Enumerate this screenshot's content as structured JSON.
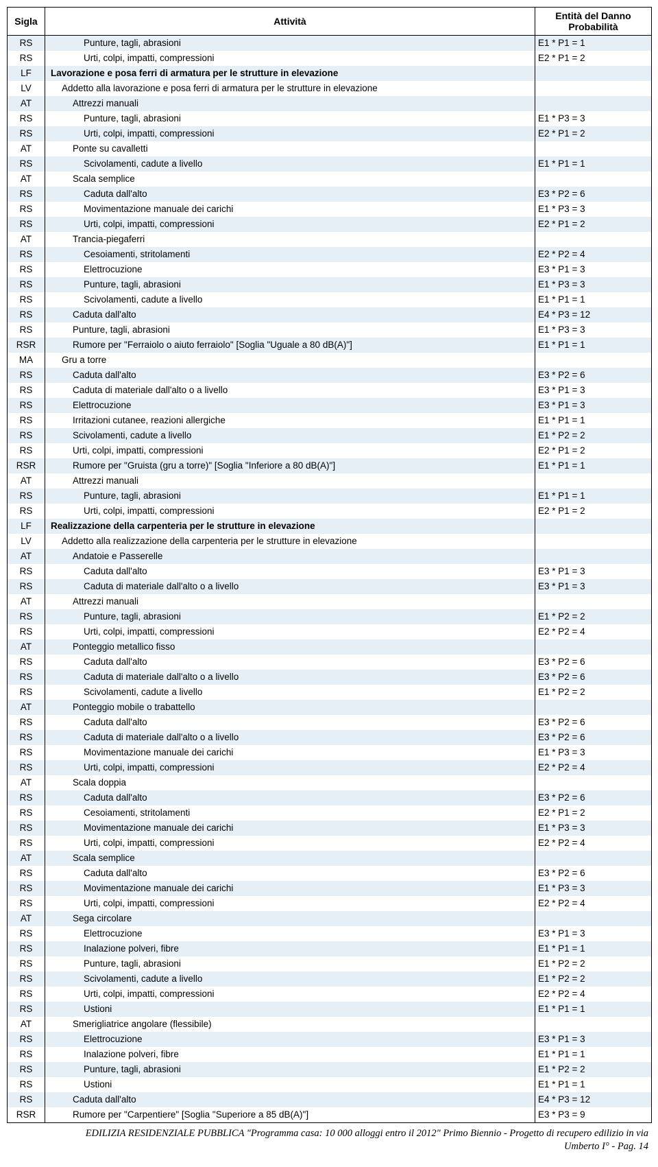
{
  "headers": {
    "sigla": "Sigla",
    "attivita": "Attività",
    "entita": "Entità del Danno Probabilità"
  },
  "rows": [
    {
      "sigla": "RS",
      "text": "Punture, tagli, abrasioni",
      "indent": 3,
      "bold": false,
      "ent": "E1 * P1 = 1"
    },
    {
      "sigla": "RS",
      "text": "Urti, colpi, impatti, compressioni",
      "indent": 3,
      "bold": false,
      "ent": "E2 * P1 = 2"
    },
    {
      "sigla": "LF",
      "text": "Lavorazione e posa ferri di armatura per le strutture in elevazione",
      "indent": 0,
      "bold": true,
      "ent": ""
    },
    {
      "sigla": "LV",
      "text": "Addetto alla lavorazione e posa ferri di armatura per le strutture in elevazione",
      "indent": 1,
      "bold": false,
      "ent": ""
    },
    {
      "sigla": "AT",
      "text": "Attrezzi manuali",
      "indent": 2,
      "bold": false,
      "ent": ""
    },
    {
      "sigla": "RS",
      "text": "Punture, tagli, abrasioni",
      "indent": 3,
      "bold": false,
      "ent": "E1 * P3 = 3"
    },
    {
      "sigla": "RS",
      "text": "Urti, colpi, impatti, compressioni",
      "indent": 3,
      "bold": false,
      "ent": "E2 * P1 = 2"
    },
    {
      "sigla": "AT",
      "text": "Ponte su cavalletti",
      "indent": 2,
      "bold": false,
      "ent": ""
    },
    {
      "sigla": "RS",
      "text": "Scivolamenti, cadute a livello",
      "indent": 3,
      "bold": false,
      "ent": "E1 * P1 = 1"
    },
    {
      "sigla": "AT",
      "text": "Scala semplice",
      "indent": 2,
      "bold": false,
      "ent": ""
    },
    {
      "sigla": "RS",
      "text": "Caduta dall'alto",
      "indent": 3,
      "bold": false,
      "ent": "E3 * P2 = 6"
    },
    {
      "sigla": "RS",
      "text": "Movimentazione manuale dei carichi",
      "indent": 3,
      "bold": false,
      "ent": "E1 * P3 = 3"
    },
    {
      "sigla": "RS",
      "text": "Urti, colpi, impatti, compressioni",
      "indent": 3,
      "bold": false,
      "ent": "E2 * P1 = 2"
    },
    {
      "sigla": "AT",
      "text": "Trancia-piegaferri",
      "indent": 2,
      "bold": false,
      "ent": ""
    },
    {
      "sigla": "RS",
      "text": "Cesoiamenti, stritolamenti",
      "indent": 3,
      "bold": false,
      "ent": "E2 * P2 = 4"
    },
    {
      "sigla": "RS",
      "text": "Elettrocuzione",
      "indent": 3,
      "bold": false,
      "ent": "E3 * P1 = 3"
    },
    {
      "sigla": "RS",
      "text": "Punture, tagli, abrasioni",
      "indent": 3,
      "bold": false,
      "ent": "E1 * P3 = 3"
    },
    {
      "sigla": "RS",
      "text": "Scivolamenti, cadute a livello",
      "indent": 3,
      "bold": false,
      "ent": "E1 * P1 = 1"
    },
    {
      "sigla": "RS",
      "text": "Caduta dall'alto",
      "indent": 2,
      "bold": false,
      "ent": "E4 * P3 = 12"
    },
    {
      "sigla": "RS",
      "text": "Punture, tagli, abrasioni",
      "indent": 2,
      "bold": false,
      "ent": "E1 * P3 = 3"
    },
    {
      "sigla": "RSR",
      "text": "Rumore per \"Ferraiolo o aiuto ferraiolo\" [Soglia \"Uguale a 80 dB(A)\"]",
      "indent": 2,
      "bold": false,
      "ent": "E1 * P1 = 1"
    },
    {
      "sigla": "MA",
      "text": "Gru a torre",
      "indent": 1,
      "bold": false,
      "ent": ""
    },
    {
      "sigla": "RS",
      "text": "Caduta dall'alto",
      "indent": 2,
      "bold": false,
      "ent": "E3 * P2 = 6"
    },
    {
      "sigla": "RS",
      "text": "Caduta di materiale dall'alto o a livello",
      "indent": 2,
      "bold": false,
      "ent": "E3 * P1 = 3"
    },
    {
      "sigla": "RS",
      "text": "Elettrocuzione",
      "indent": 2,
      "bold": false,
      "ent": "E3 * P1 = 3"
    },
    {
      "sigla": "RS",
      "text": "Irritazioni cutanee, reazioni allergiche",
      "indent": 2,
      "bold": false,
      "ent": "E1 * P1 = 1"
    },
    {
      "sigla": "RS",
      "text": "Scivolamenti, cadute a livello",
      "indent": 2,
      "bold": false,
      "ent": "E1 * P2 = 2"
    },
    {
      "sigla": "RS",
      "text": "Urti, colpi, impatti, compressioni",
      "indent": 2,
      "bold": false,
      "ent": "E2 * P1 = 2"
    },
    {
      "sigla": "RSR",
      "text": "Rumore per \"Gruista (gru a torre)\" [Soglia \"Inferiore a 80 dB(A)\"]",
      "indent": 2,
      "bold": false,
      "ent": "E1 * P1 = 1"
    },
    {
      "sigla": "AT",
      "text": "Attrezzi manuali",
      "indent": 2,
      "bold": false,
      "ent": ""
    },
    {
      "sigla": "RS",
      "text": "Punture, tagli, abrasioni",
      "indent": 3,
      "bold": false,
      "ent": "E1 * P1 = 1"
    },
    {
      "sigla": "RS",
      "text": "Urti, colpi, impatti, compressioni",
      "indent": 3,
      "bold": false,
      "ent": "E2 * P1 = 2"
    },
    {
      "sigla": "LF",
      "text": "Realizzazione della carpenteria per le strutture in elevazione",
      "indent": 0,
      "bold": true,
      "ent": ""
    },
    {
      "sigla": "LV",
      "text": "Addetto alla realizzazione della carpenteria per le strutture in elevazione",
      "indent": 1,
      "bold": false,
      "ent": ""
    },
    {
      "sigla": "AT",
      "text": "Andatoie e Passerelle",
      "indent": 2,
      "bold": false,
      "ent": ""
    },
    {
      "sigla": "RS",
      "text": "Caduta dall'alto",
      "indent": 3,
      "bold": false,
      "ent": "E3 * P1 = 3"
    },
    {
      "sigla": "RS",
      "text": "Caduta di materiale dall'alto o a livello",
      "indent": 3,
      "bold": false,
      "ent": "E3 * P1 = 3"
    },
    {
      "sigla": "AT",
      "text": "Attrezzi manuali",
      "indent": 2,
      "bold": false,
      "ent": ""
    },
    {
      "sigla": "RS",
      "text": "Punture, tagli, abrasioni",
      "indent": 3,
      "bold": false,
      "ent": "E1 * P2 = 2"
    },
    {
      "sigla": "RS",
      "text": "Urti, colpi, impatti, compressioni",
      "indent": 3,
      "bold": false,
      "ent": "E2 * P2 = 4"
    },
    {
      "sigla": "AT",
      "text": "Ponteggio metallico fisso",
      "indent": 2,
      "bold": false,
      "ent": ""
    },
    {
      "sigla": "RS",
      "text": "Caduta dall'alto",
      "indent": 3,
      "bold": false,
      "ent": "E3 * P2 = 6"
    },
    {
      "sigla": "RS",
      "text": "Caduta di materiale dall'alto o a livello",
      "indent": 3,
      "bold": false,
      "ent": "E3 * P2 = 6"
    },
    {
      "sigla": "RS",
      "text": "Scivolamenti, cadute a livello",
      "indent": 3,
      "bold": false,
      "ent": "E1 * P2 = 2"
    },
    {
      "sigla": "AT",
      "text": "Ponteggio mobile o trabattello",
      "indent": 2,
      "bold": false,
      "ent": ""
    },
    {
      "sigla": "RS",
      "text": "Caduta dall'alto",
      "indent": 3,
      "bold": false,
      "ent": "E3 * P2 = 6"
    },
    {
      "sigla": "RS",
      "text": "Caduta di materiale dall'alto o a livello",
      "indent": 3,
      "bold": false,
      "ent": "E3 * P2 = 6"
    },
    {
      "sigla": "RS",
      "text": "Movimentazione manuale dei carichi",
      "indent": 3,
      "bold": false,
      "ent": "E1 * P3 = 3"
    },
    {
      "sigla": "RS",
      "text": "Urti, colpi, impatti, compressioni",
      "indent": 3,
      "bold": false,
      "ent": "E2 * P2 = 4"
    },
    {
      "sigla": "AT",
      "text": "Scala doppia",
      "indent": 2,
      "bold": false,
      "ent": ""
    },
    {
      "sigla": "RS",
      "text": "Caduta dall'alto",
      "indent": 3,
      "bold": false,
      "ent": "E3 * P2 = 6"
    },
    {
      "sigla": "RS",
      "text": "Cesoiamenti, stritolamenti",
      "indent": 3,
      "bold": false,
      "ent": "E2 * P1 = 2"
    },
    {
      "sigla": "RS",
      "text": "Movimentazione manuale dei carichi",
      "indent": 3,
      "bold": false,
      "ent": "E1 * P3 = 3"
    },
    {
      "sigla": "RS",
      "text": "Urti, colpi, impatti, compressioni",
      "indent": 3,
      "bold": false,
      "ent": "E2 * P2 = 4"
    },
    {
      "sigla": "AT",
      "text": "Scala semplice",
      "indent": 2,
      "bold": false,
      "ent": ""
    },
    {
      "sigla": "RS",
      "text": "Caduta dall'alto",
      "indent": 3,
      "bold": false,
      "ent": "E3 * P2 = 6"
    },
    {
      "sigla": "RS",
      "text": "Movimentazione manuale dei carichi",
      "indent": 3,
      "bold": false,
      "ent": "E1 * P3 = 3"
    },
    {
      "sigla": "RS",
      "text": "Urti, colpi, impatti, compressioni",
      "indent": 3,
      "bold": false,
      "ent": "E2 * P2 = 4"
    },
    {
      "sigla": "AT",
      "text": "Sega circolare",
      "indent": 2,
      "bold": false,
      "ent": ""
    },
    {
      "sigla": "RS",
      "text": "Elettrocuzione",
      "indent": 3,
      "bold": false,
      "ent": "E3 * P1 = 3"
    },
    {
      "sigla": "RS",
      "text": "Inalazione polveri, fibre",
      "indent": 3,
      "bold": false,
      "ent": "E1 * P1 = 1"
    },
    {
      "sigla": "RS",
      "text": "Punture, tagli, abrasioni",
      "indent": 3,
      "bold": false,
      "ent": "E1 * P2 = 2"
    },
    {
      "sigla": "RS",
      "text": "Scivolamenti, cadute a livello",
      "indent": 3,
      "bold": false,
      "ent": "E1 * P2 = 2"
    },
    {
      "sigla": "RS",
      "text": "Urti, colpi, impatti, compressioni",
      "indent": 3,
      "bold": false,
      "ent": "E2 * P2 = 4"
    },
    {
      "sigla": "RS",
      "text": "Ustioni",
      "indent": 3,
      "bold": false,
      "ent": "E1 * P1 = 1"
    },
    {
      "sigla": "AT",
      "text": "Smerigliatrice angolare (flessibile)",
      "indent": 2,
      "bold": false,
      "ent": ""
    },
    {
      "sigla": "RS",
      "text": "Elettrocuzione",
      "indent": 3,
      "bold": false,
      "ent": "E3 * P1 = 3"
    },
    {
      "sigla": "RS",
      "text": "Inalazione polveri, fibre",
      "indent": 3,
      "bold": false,
      "ent": "E1 * P1 = 1"
    },
    {
      "sigla": "RS",
      "text": "Punture, tagli, abrasioni",
      "indent": 3,
      "bold": false,
      "ent": "E1 * P2 = 2"
    },
    {
      "sigla": "RS",
      "text": "Ustioni",
      "indent": 3,
      "bold": false,
      "ent": "E1 * P1 = 1"
    },
    {
      "sigla": "RS",
      "text": "Caduta dall'alto",
      "indent": 2,
      "bold": false,
      "ent": "E4 * P3 = 12"
    },
    {
      "sigla": "RSR",
      "text": "Rumore per \"Carpentiere\" [Soglia \"Superiore a 85 dB(A)\"]",
      "indent": 2,
      "bold": false,
      "ent": "E3 * P3 = 9"
    }
  ],
  "footer": {
    "line1": "EDILIZIA RESIDENZIALE PUBBLICA \"Programma casa: 10 000 alloggi entro il 2012\" Primo Biennio - Progetto di recupero edilizio in via",
    "line2": "Umberto I° - Pag. 14"
  }
}
